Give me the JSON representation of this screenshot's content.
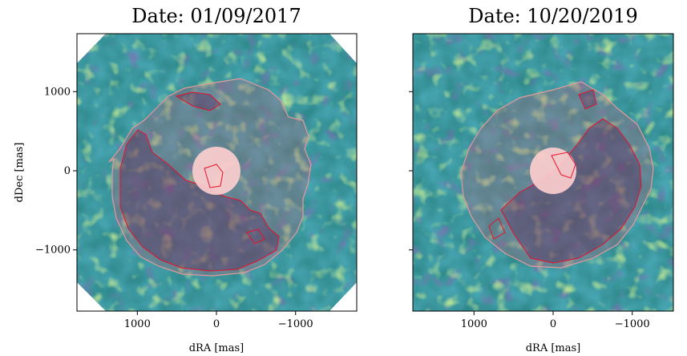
{
  "chart_data": [
    {
      "type": "heatmap",
      "title": "Date: 01/09/2017",
      "xlabel": "dRA [mas]",
      "ylabel": "dDec [mas]",
      "xlim": [
        1750,
        -1750
      ],
      "ylim": [
        -1750,
        1750
      ],
      "x_ticks": [
        1000,
        0,
        -1000
      ],
      "x_tick_labels": [
        "1000",
        "0",
        "−1000"
      ],
      "y_ticks": [
        1000,
        0,
        -1000
      ],
      "y_tick_labels": [
        "1000",
        "0",
        "−1000"
      ],
      "colormap": "viridis",
      "data_mask": "octagon",
      "grid": false,
      "legend": "none",
      "masked_region": {
        "center": [
          0,
          0
        ],
        "radius_mas": 280,
        "color": "#ffcfcf"
      },
      "outer_contour_color": "#e59a9a",
      "inner_contour_color": "#e8102a"
    },
    {
      "type": "heatmap",
      "title": "Date: 10/20/2019",
      "xlabel": "dRA [mas]",
      "ylabel": "",
      "xlim": [
        1750,
        -1750
      ],
      "ylim": [
        -1750,
        1750
      ],
      "x_ticks": [
        1000,
        0,
        -1000
      ],
      "x_tick_labels": [
        "1000",
        "0",
        "−1000"
      ],
      "y_ticks": [
        1000,
        0,
        -1000
      ],
      "y_tick_labels": [
        "",
        "",
        ""
      ],
      "colormap": "viridis",
      "data_mask": "full",
      "grid": false,
      "legend": "none",
      "masked_region": {
        "center": [
          0,
          0
        ],
        "radius_mas": 280,
        "color": "#ffcfcf"
      },
      "outer_contour_color": "#e59a9a",
      "inner_contour_color": "#e8102a"
    }
  ]
}
